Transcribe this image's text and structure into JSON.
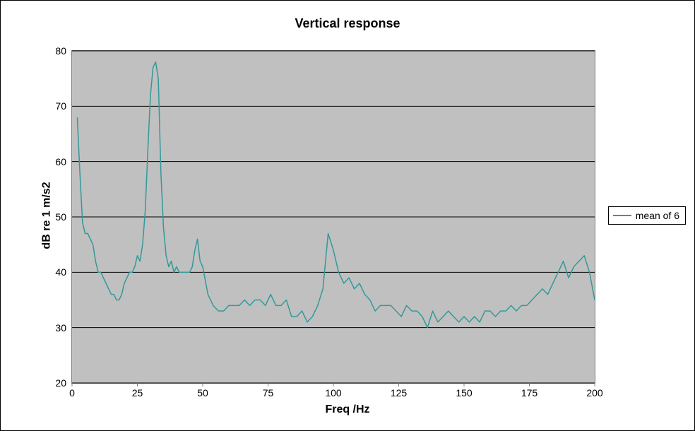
{
  "chart": {
    "type": "line",
    "title": "Vertical response",
    "title_fontsize": 18,
    "title_fontweight": "bold",
    "xlabel": "Freq /Hz",
    "ylabel": "dB re 1 m/s2",
    "label_fontsize": 16,
    "label_fontweight": "bold",
    "tick_fontsize": 14,
    "xlim": [
      0,
      200
    ],
    "ylim": [
      20,
      80
    ],
    "xticks": [
      0,
      25,
      50,
      75,
      100,
      125,
      150,
      175,
      200
    ],
    "yticks": [
      20,
      30,
      40,
      50,
      60,
      70,
      80
    ],
    "plot_background": "#c0c0c0",
    "page_background": "#ffffff",
    "grid_color": "#000000",
    "grid_linewidth": 1,
    "border_color": "#808080",
    "tick_mark_color": "#808080",
    "series": [
      {
        "name": "mean of 6",
        "color": "#339999",
        "linewidth": 1.5,
        "x": [
          2,
          3,
          4,
          5,
          6,
          7,
          8,
          9,
          10,
          11,
          12,
          13,
          14,
          15,
          16,
          17,
          18,
          19,
          20,
          21,
          22,
          23,
          24,
          25,
          26,
          27,
          28,
          29,
          30,
          31,
          32,
          33,
          34,
          35,
          36,
          37,
          38,
          39,
          40,
          41,
          42,
          43,
          44,
          45,
          46,
          47,
          48,
          49,
          50,
          52,
          54,
          56,
          58,
          60,
          62,
          64,
          66,
          68,
          70,
          72,
          74,
          76,
          78,
          80,
          82,
          84,
          86,
          88,
          90,
          92,
          94,
          96,
          98,
          100,
          102,
          104,
          106,
          108,
          110,
          112,
          114,
          116,
          118,
          120,
          122,
          124,
          126,
          128,
          130,
          132,
          134,
          136,
          138,
          140,
          142,
          144,
          146,
          148,
          150,
          152,
          154,
          156,
          158,
          160,
          162,
          164,
          166,
          168,
          170,
          172,
          174,
          176,
          178,
          180,
          182,
          184,
          186,
          188,
          190,
          192,
          194,
          196,
          198,
          200
        ],
        "y": [
          68,
          58,
          49,
          47,
          47,
          46,
          45,
          42,
          40,
          40,
          39,
          38,
          37,
          36,
          36,
          35,
          35,
          36,
          38,
          39,
          40,
          40,
          41,
          43,
          42,
          45,
          51,
          62,
          72,
          77,
          78,
          75,
          58,
          48,
          43,
          41,
          42,
          40,
          41,
          40,
          40,
          40,
          40,
          40,
          41,
          44,
          46,
          42,
          41,
          36,
          34,
          33,
          33,
          34,
          34,
          34,
          35,
          34,
          35,
          35,
          34,
          36,
          34,
          34,
          35,
          32,
          32,
          33,
          31,
          32,
          34,
          37,
          47,
          44,
          40,
          38,
          39,
          37,
          38,
          36,
          35,
          33,
          34,
          34,
          34,
          33,
          32,
          34,
          33,
          33,
          32,
          30,
          33,
          31,
          32,
          33,
          32,
          31,
          32,
          31,
          32,
          31,
          33,
          33,
          32,
          33,
          33,
          34,
          33,
          34,
          34,
          35,
          36,
          37,
          36,
          38,
          40,
          42,
          39,
          41,
          42,
          43,
          40,
          35
        ]
      }
    ],
    "legend": {
      "position": "right-middle",
      "border_color": "#000000",
      "background": "#ffffff",
      "fontsize": 14
    }
  }
}
